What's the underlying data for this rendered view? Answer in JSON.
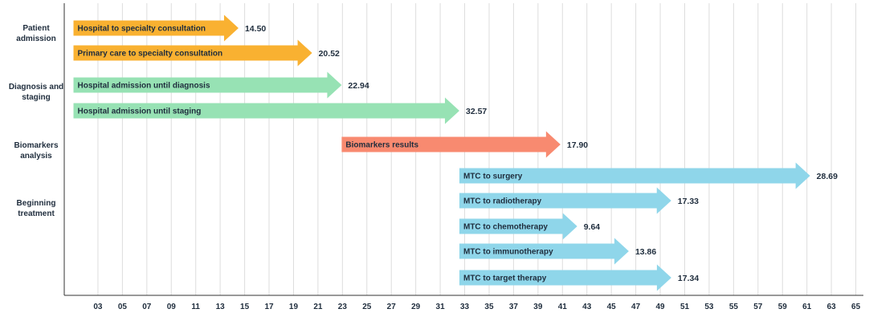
{
  "chart_data": {
    "type": "bar",
    "orientation": "horizontal-timeline",
    "grid": true,
    "x_ticks": [
      "03",
      "05",
      "07",
      "09",
      "11",
      "13",
      "15",
      "17",
      "19",
      "21",
      "23",
      "25",
      "27",
      "29",
      "31",
      "33",
      "35",
      "37",
      "39",
      "41",
      "43",
      "45",
      "47",
      "49",
      "51",
      "53",
      "55",
      "57",
      "59",
      "61",
      "63",
      "65"
    ],
    "xlim": [
      1,
      66
    ],
    "groups": [
      {
        "name": "Patient\nadmission",
        "color": "#f9b131"
      },
      {
        "name": "Diagnosis and\nstaging",
        "color": "#97e2b4"
      },
      {
        "name": "Biomarkers\nanalysis",
        "color": "#f88a70"
      },
      {
        "name": "Beginning\ntreatment",
        "color": "#8fd6ea"
      }
    ],
    "bars": [
      {
        "label": "Hospital to specialty consultation",
        "group": 0,
        "start": 1,
        "end": 14.5,
        "value": "14.50"
      },
      {
        "label": "Primary care to specialty consultation",
        "group": 0,
        "start": 1,
        "end": 20.52,
        "value": "20.52"
      },
      {
        "label": "Hospital admission until diagnosis",
        "group": 1,
        "start": 1,
        "end": 22.94,
        "value": "22.94"
      },
      {
        "label": "Hospital admission until staging",
        "group": 1,
        "start": 1,
        "end": 32.57,
        "value": "32.57"
      },
      {
        "label": "Biomarkers results",
        "group": 2,
        "start": 22.94,
        "end": 40.84,
        "value": "17.90"
      },
      {
        "label": "MTC to surgery",
        "group": 3,
        "start": 32.57,
        "end": 61.26,
        "value": "28.69"
      },
      {
        "label": "MTC to radiotherapy",
        "group": 3,
        "start": 32.57,
        "end": 49.9,
        "value": "17.33"
      },
      {
        "label": "MTC to chemotherapy",
        "group": 3,
        "start": 32.57,
        "end": 42.21,
        "value": "9.64"
      },
      {
        "label": "MTC to immunotherapy",
        "group": 3,
        "start": 32.57,
        "end": 46.43,
        "value": "13.86"
      },
      {
        "label": "MTC to target therapy",
        "group": 3,
        "start": 32.57,
        "end": 49.91,
        "value": "17.34"
      }
    ]
  }
}
